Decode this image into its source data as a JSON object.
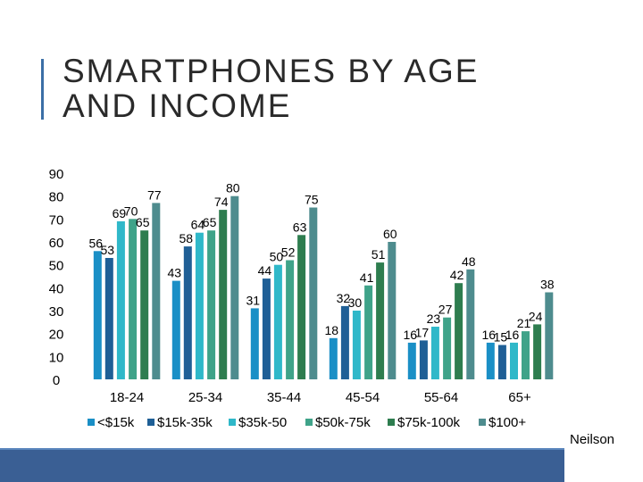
{
  "title": "SMARTPHONES BY AGE AND INCOME",
  "source": "Neilson",
  "colors": {
    "accent": "#3b6fa6",
    "footer": "#3a5f94",
    "series": [
      "#1a8fc6",
      "#1f5f96",
      "#2fb8c9",
      "#3fa389",
      "#2e7d4f",
      "#4e8c8e"
    ]
  },
  "chart_data": {
    "type": "bar",
    "title": "SMARTPHONES BY AGE AND INCOME",
    "xlabel": "",
    "ylabel": "",
    "ylim": [
      0,
      90
    ],
    "yticks": [
      "90",
      "80",
      "70",
      "60",
      "50",
      "40",
      "30",
      "20",
      "10",
      "0"
    ],
    "grid": false,
    "legend": "bottom",
    "categories": [
      "18-24",
      "25-34",
      "35-44",
      "45-54",
      "55-64",
      "65+"
    ],
    "series": [
      {
        "name": "<$15k",
        "values": [
          56,
          43,
          31,
          18,
          16,
          16
        ]
      },
      {
        "name": "$15k-35k",
        "values": [
          53,
          58,
          44,
          32,
          17,
          15
        ]
      },
      {
        "name": "$35k-50",
        "values": [
          69,
          64,
          50,
          30,
          23,
          16
        ]
      },
      {
        "name": "$50k-75k",
        "values": [
          70,
          65,
          52,
          41,
          27,
          21
        ]
      },
      {
        "name": "$75k-100k",
        "values": [
          65,
          74,
          63,
          51,
          42,
          24
        ]
      },
      {
        "name": "$100+",
        "values": [
          77,
          80,
          75,
          60,
          48,
          38
        ]
      }
    ]
  }
}
